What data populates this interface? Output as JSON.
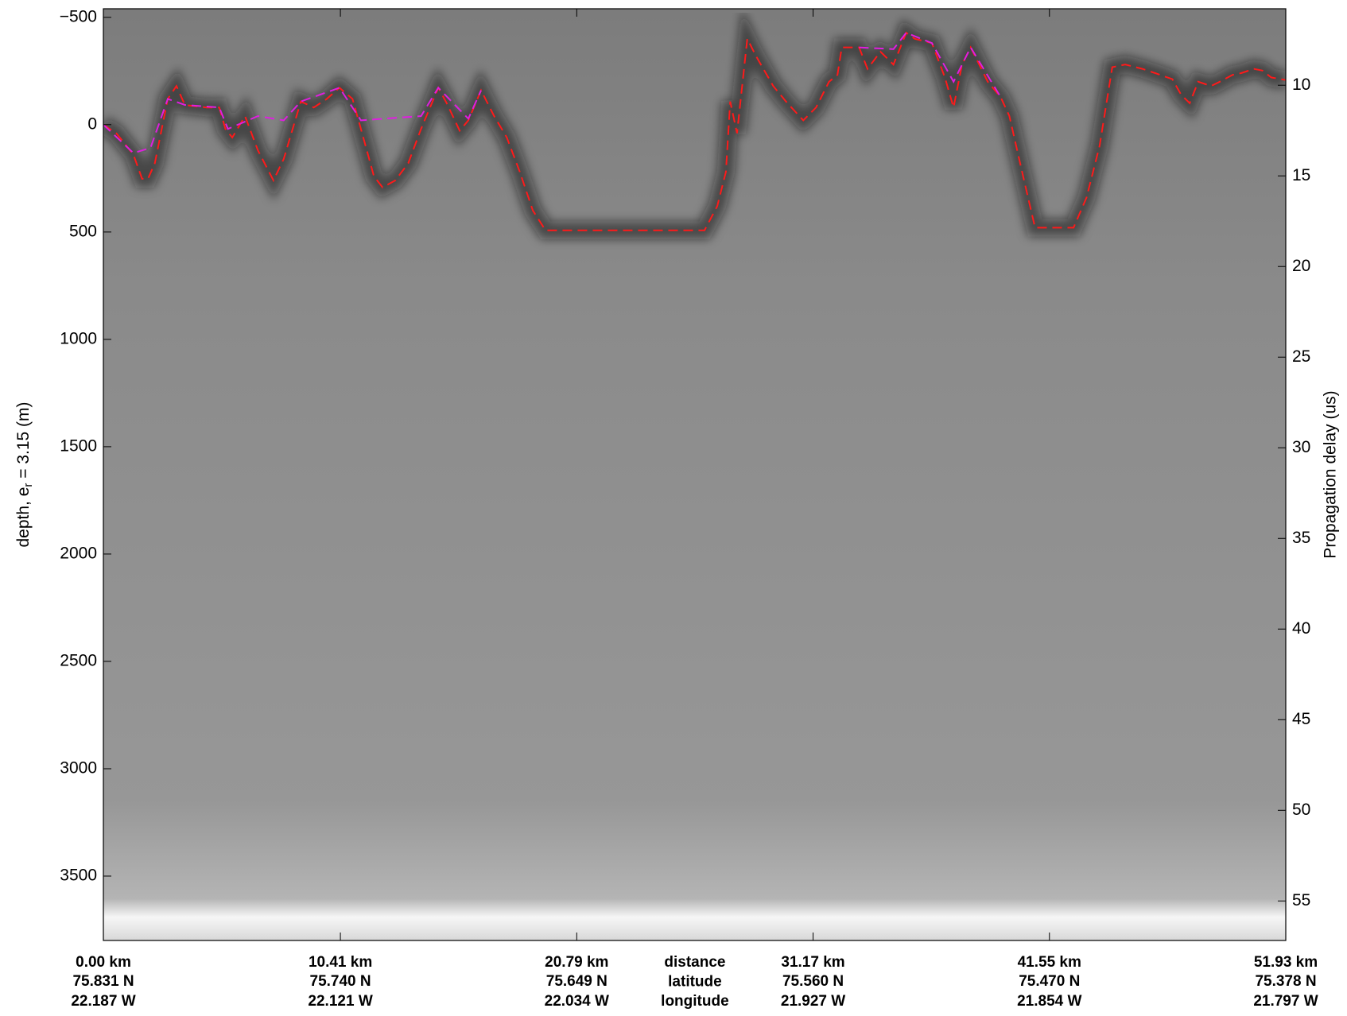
{
  "chart_data": {
    "type": "line",
    "ylabel": {
      "prefix": "depth, e",
      "subscript": "r",
      "suffix": " = 3.15 (m)"
    },
    "y2label": "Propagation delay (us)",
    "xlim": [
      0,
      51.93
    ],
    "ylim": [
      -540,
      3800
    ],
    "y_reversed": true,
    "yticks": [
      {
        "value": -500,
        "label": "−500"
      },
      0,
      500,
      1000,
      1500,
      2000,
      2500,
      3000,
      3500
    ],
    "y2lim": [
      5.78,
      57.18
    ],
    "y2ticks": [
      10,
      15,
      20,
      25,
      30,
      35,
      40,
      45,
      50,
      55
    ],
    "xticks": [
      {
        "value": 0,
        "label": "0.00 km"
      },
      {
        "value": 10.41,
        "label": "10.41 km"
      },
      {
        "value": 20.79,
        "label": "20.79 km"
      },
      {
        "value": 31.17,
        "label": "31.17 km"
      },
      {
        "value": 41.55,
        "label": "41.55 km"
      },
      {
        "value": 51.93,
        "label": "51.93 km"
      }
    ],
    "x_latitudes": [
      "75.831 N",
      "75.740 N",
      "75.649 N",
      "75.560 N",
      "75.470 N",
      "75.378 N"
    ],
    "x_longitudes": [
      "22.187 W",
      "22.121 W",
      "22.034 W",
      "21.927 W",
      "21.854 W",
      "21.797 W"
    ],
    "x_row_labels": [
      "distance",
      "latitude",
      "longitude"
    ],
    "series": [
      {
        "color": "#ff1a1a",
        "x": [
          0.0,
          0.57,
          1.32,
          1.7,
          1.96,
          2.26,
          2.83,
          3.21,
          3.58,
          4.53,
          5.09,
          5.36,
          5.66,
          6.22,
          6.79,
          7.47,
          7.92,
          8.67,
          9.24,
          9.81,
          10.37,
          10.94,
          11.31,
          11.88,
          12.26,
          12.82,
          13.39,
          13.95,
          14.71,
          15.08,
          15.65,
          16.03,
          16.59,
          17.16,
          17.72,
          18.29,
          18.86,
          19.42,
          26.4,
          26.96,
          27.34,
          27.53,
          27.83,
          28.28,
          28.66,
          29.42,
          29.98,
          30.74,
          31.3,
          31.87,
          32.24,
          32.43,
          33.19,
          33.56,
          34.13,
          34.7,
          35.26,
          35.64,
          36.39,
          36.96,
          37.34,
          37.71,
          38.09,
          38.84,
          39.41,
          39.79,
          40.35,
          40.92,
          42.61,
          43.18,
          43.75,
          44.31,
          44.88,
          45.63,
          46.2,
          46.95,
          47.33,
          47.71,
          48.08,
          48.65,
          49.03,
          49.59,
          49.97,
          50.53,
          50.91,
          51.29,
          51.93
        ],
        "values": [
          0,
          40,
          140,
          252,
          252,
          180,
          -120,
          -180,
          -92,
          -80,
          -80,
          20,
          60,
          -40,
          120,
          260,
          160,
          -108,
          -80,
          -120,
          -172,
          -120,
          20,
          240,
          292,
          260,
          180,
          20,
          -172,
          -100,
          28,
          -20,
          -160,
          -40,
          60,
          220,
          400,
          492,
          492,
          380,
          220,
          -108,
          40,
          -400,
          -320,
          -180,
          -108,
          -20,
          -80,
          -200,
          -232,
          -360,
          -360,
          -260,
          -340,
          -280,
          -428,
          -400,
          -380,
          -220,
          -80,
          -280,
          -360,
          -200,
          -128,
          -40,
          220,
          480,
          480,
          340,
          100,
          -268,
          -280,
          -260,
          -240,
          -212,
          -140,
          -100,
          -200,
          -180,
          -200,
          -232,
          -240,
          -260,
          -252,
          -220,
          -208
        ]
      },
      {
        "color": "#e01ee0",
        "x": [
          0,
          1.32,
          2.07,
          2.83,
          3.58,
          5.09,
          5.47,
          6.79,
          7.92,
          8.67,
          10.37,
          11.31,
          13.95,
          14.71,
          16.03,
          16.59,
          null,
          33.19,
          34.7,
          35.26,
          36.39,
          37.34,
          38.09,
          39.41
        ],
        "values": [
          0,
          132,
          108,
          -120,
          -92,
          -80,
          20,
          -40,
          -20,
          -108,
          -172,
          -20,
          -40,
          -172,
          -28,
          -160,
          null,
          -360,
          -352,
          -428,
          -380,
          -200,
          -360,
          -128
        ]
      }
    ]
  }
}
